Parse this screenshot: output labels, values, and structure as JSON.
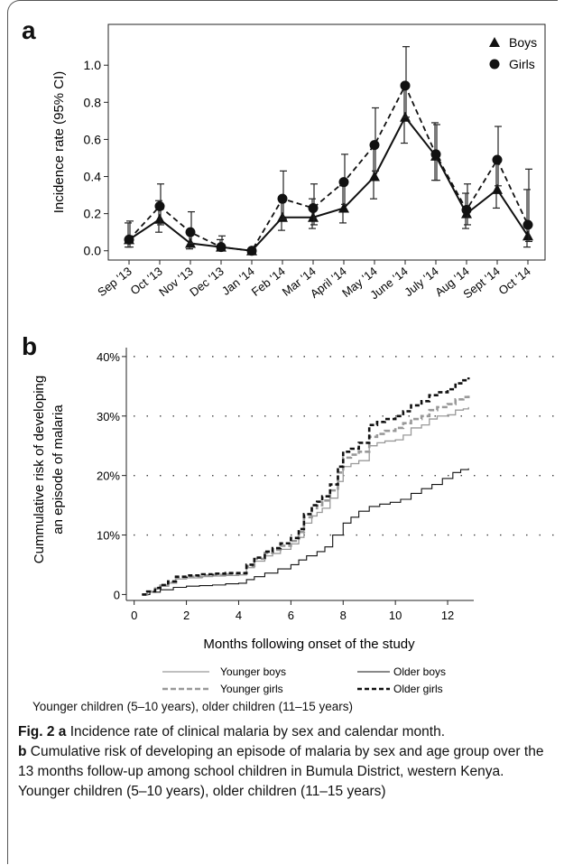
{
  "panel_a_letter": "a",
  "panel_b_letter": "b",
  "footnote": "Younger children (5–10 years), older children (11–15 years)",
  "caption": {
    "fig_label": "Fig. 2",
    "a_label": "a",
    "a_text": " Incidence rate of clinical malaria by sex and calendar month.",
    "b_label": "b",
    "b_text": " Cumulative risk of developing an episode of malaria by sex and age group over the 13 months follow-up among school children in Bumula District, western Kenya. Younger children (5–10 years), older children (11–15 years)"
  },
  "chart_data": [
    {
      "type": "line",
      "panel": "a",
      "ylabel": "Incidence rate (95% CI)",
      "xlabel": "",
      "categories": [
        "Sep '13",
        "Oct '13",
        "Nov '13",
        "Dec '13",
        "Jan '14",
        "Feb '14",
        "Mar '14",
        "April '14",
        "May '14",
        "June '14",
        "July '14",
        "Aug '14",
        "Sept '14",
        "Oct '14"
      ],
      "y_ticks": [
        "0.0",
        "0.2",
        "0.4",
        "0.6",
        "0.8",
        "1.0"
      ],
      "ylim": [
        -0.05,
        1.22
      ],
      "legend_position": "top-right",
      "grid": false,
      "series": [
        {
          "name": "Boys",
          "marker": "triangle",
          "line_style": "solid",
          "values": [
            0.06,
            0.17,
            0.04,
            0.02,
            0.0,
            0.18,
            0.18,
            0.23,
            0.4,
            0.72,
            0.51,
            0.2,
            0.33,
            0.08
          ],
          "ci_low": [
            0.02,
            0.1,
            0.01,
            0.0,
            0.0,
            0.11,
            0.12,
            0.15,
            0.28,
            0.58,
            0.38,
            0.12,
            0.23,
            0.02
          ],
          "ci_high": [
            0.15,
            0.27,
            0.11,
            0.06,
            0.0,
            0.29,
            0.28,
            0.35,
            0.56,
            0.9,
            0.69,
            0.31,
            0.48,
            0.33
          ]
        },
        {
          "name": "Girls",
          "marker": "circle",
          "line_style": "dashed",
          "values": [
            0.06,
            0.24,
            0.1,
            0.02,
            0.0,
            0.28,
            0.23,
            0.37,
            0.57,
            0.89,
            0.52,
            0.22,
            0.49,
            0.14
          ],
          "ci_low": [
            0.02,
            0.14,
            0.04,
            0.0,
            0.0,
            0.17,
            0.14,
            0.25,
            0.43,
            0.72,
            0.38,
            0.14,
            0.35,
            0.05
          ],
          "ci_high": [
            0.16,
            0.36,
            0.21,
            0.08,
            0.0,
            0.43,
            0.36,
            0.52,
            0.77,
            1.1,
            0.68,
            0.36,
            0.67,
            0.44
          ]
        }
      ]
    },
    {
      "type": "line",
      "panel": "b",
      "ylabel_lines": [
        "Cummulative risk of developing",
        "an episode of malaria"
      ],
      "xlabel": "Months following onset of the study",
      "x_ticks": [
        0,
        2,
        4,
        6,
        8,
        10,
        12
      ],
      "y_ticks": [
        "0",
        "10%",
        "20%",
        "30%",
        "40%"
      ],
      "xlim": [
        -0.3,
        13
      ],
      "ylim": [
        -1,
        41.5
      ],
      "grid": "horizontal dotted",
      "legend_position": "bottom",
      "series": [
        {
          "name": "Younger boys",
          "style": "solid-gray",
          "x": [
            0.3,
            0.5,
            0.8,
            1.0,
            1.3,
            1.6,
            2.0,
            2.6,
            3.0,
            3.5,
            4.0,
            4.3,
            4.6,
            5.0,
            5.3,
            5.6,
            6.0,
            6.3,
            6.5,
            6.8,
            7.0,
            7.2,
            7.5,
            7.8,
            8.0,
            8.3,
            8.6,
            9.0,
            9.3,
            9.6,
            10.0,
            10.3,
            10.6,
            11.0,
            11.3,
            11.6,
            12.0,
            12.3,
            12.6,
            12.8
          ],
          "values": [
            0,
            0.5,
            1.0,
            1.4,
            1.9,
            2.6,
            2.8,
            3.0,
            3.1,
            3.2,
            3.3,
            4.5,
            5.6,
            6.5,
            6.9,
            7.6,
            8.5,
            9.6,
            12.0,
            13.2,
            13.8,
            14.5,
            16.2,
            19.0,
            21.5,
            22.0,
            22.5,
            25.0,
            25.5,
            25.8,
            26.0,
            26.8,
            28.0,
            28.5,
            29.5,
            30.0,
            30.2,
            31.0,
            31.2,
            31.5
          ]
        },
        {
          "name": "Older boys",
          "style": "solid-black",
          "x": [
            0.3,
            0.6,
            1.0,
            1.5,
            2.0,
            2.5,
            3.0,
            3.5,
            4.0,
            4.3,
            4.6,
            5.0,
            5.5,
            6.0,
            6.3,
            6.6,
            7.0,
            7.3,
            7.6,
            8.0,
            8.3,
            8.6,
            9.0,
            9.4,
            9.8,
            10.2,
            10.6,
            11.0,
            11.4,
            11.8,
            12.2,
            12.5,
            12.8
          ],
          "values": [
            0,
            0.4,
            0.8,
            1.2,
            1.4,
            1.5,
            1.6,
            1.8,
            1.9,
            2.5,
            3.0,
            3.6,
            4.3,
            5.0,
            5.8,
            6.5,
            7.2,
            8.0,
            10.0,
            12.0,
            13.0,
            14.0,
            14.8,
            15.2,
            15.5,
            16.0,
            17.0,
            17.8,
            18.5,
            19.5,
            20.5,
            21.0,
            21.2
          ]
        },
        {
          "name": "Younger girls",
          "style": "dashed-gray",
          "x": [
            0.3,
            0.5,
            0.8,
            1.0,
            1.3,
            1.6,
            2.0,
            2.6,
            3.0,
            3.5,
            4.0,
            4.3,
            4.6,
            5.0,
            5.3,
            5.6,
            6.0,
            6.3,
            6.5,
            6.8,
            7.0,
            7.2,
            7.5,
            7.8,
            8.0,
            8.3,
            8.6,
            9.0,
            9.3,
            9.6,
            10.0,
            10.3,
            10.6,
            11.0,
            11.3,
            11.6,
            12.0,
            12.3,
            12.6,
            12.8
          ],
          "values": [
            0,
            0.5,
            1.0,
            1.5,
            2.0,
            2.8,
            3.0,
            3.2,
            3.3,
            3.4,
            3.5,
            4.8,
            6.0,
            7.0,
            7.5,
            8.2,
            9.0,
            10.5,
            13.0,
            14.5,
            15.0,
            15.8,
            17.5,
            20.5,
            23.0,
            23.5,
            24.0,
            26.5,
            27.0,
            27.5,
            28.0,
            28.8,
            29.5,
            30.0,
            31.0,
            31.5,
            32.0,
            32.8,
            33.2,
            33.5
          ]
        },
        {
          "name": "Older girls",
          "style": "dashed-black",
          "x": [
            0.3,
            0.5,
            0.8,
            1.0,
            1.3,
            1.6,
            2.0,
            2.6,
            3.0,
            3.5,
            4.0,
            4.3,
            4.6,
            5.0,
            5.3,
            5.6,
            6.0,
            6.3,
            6.5,
            6.8,
            7.0,
            7.2,
            7.5,
            7.8,
            8.0,
            8.3,
            8.6,
            9.0,
            9.3,
            9.6,
            10.0,
            10.3,
            10.6,
            11.0,
            11.3,
            11.6,
            12.0,
            12.3,
            12.6,
            12.8
          ],
          "values": [
            0,
            0.5,
            1.1,
            1.6,
            2.2,
            3.0,
            3.2,
            3.4,
            3.5,
            3.6,
            3.6,
            5.0,
            6.2,
            7.2,
            7.8,
            8.6,
            9.5,
            11.0,
            13.5,
            15.0,
            15.6,
            16.5,
            18.5,
            21.5,
            24.0,
            24.5,
            25.5,
            28.5,
            29.0,
            29.5,
            30.0,
            30.8,
            31.8,
            32.5,
            33.5,
            34.0,
            34.5,
            35.5,
            36.0,
            36.5
          ]
        }
      ]
    }
  ]
}
